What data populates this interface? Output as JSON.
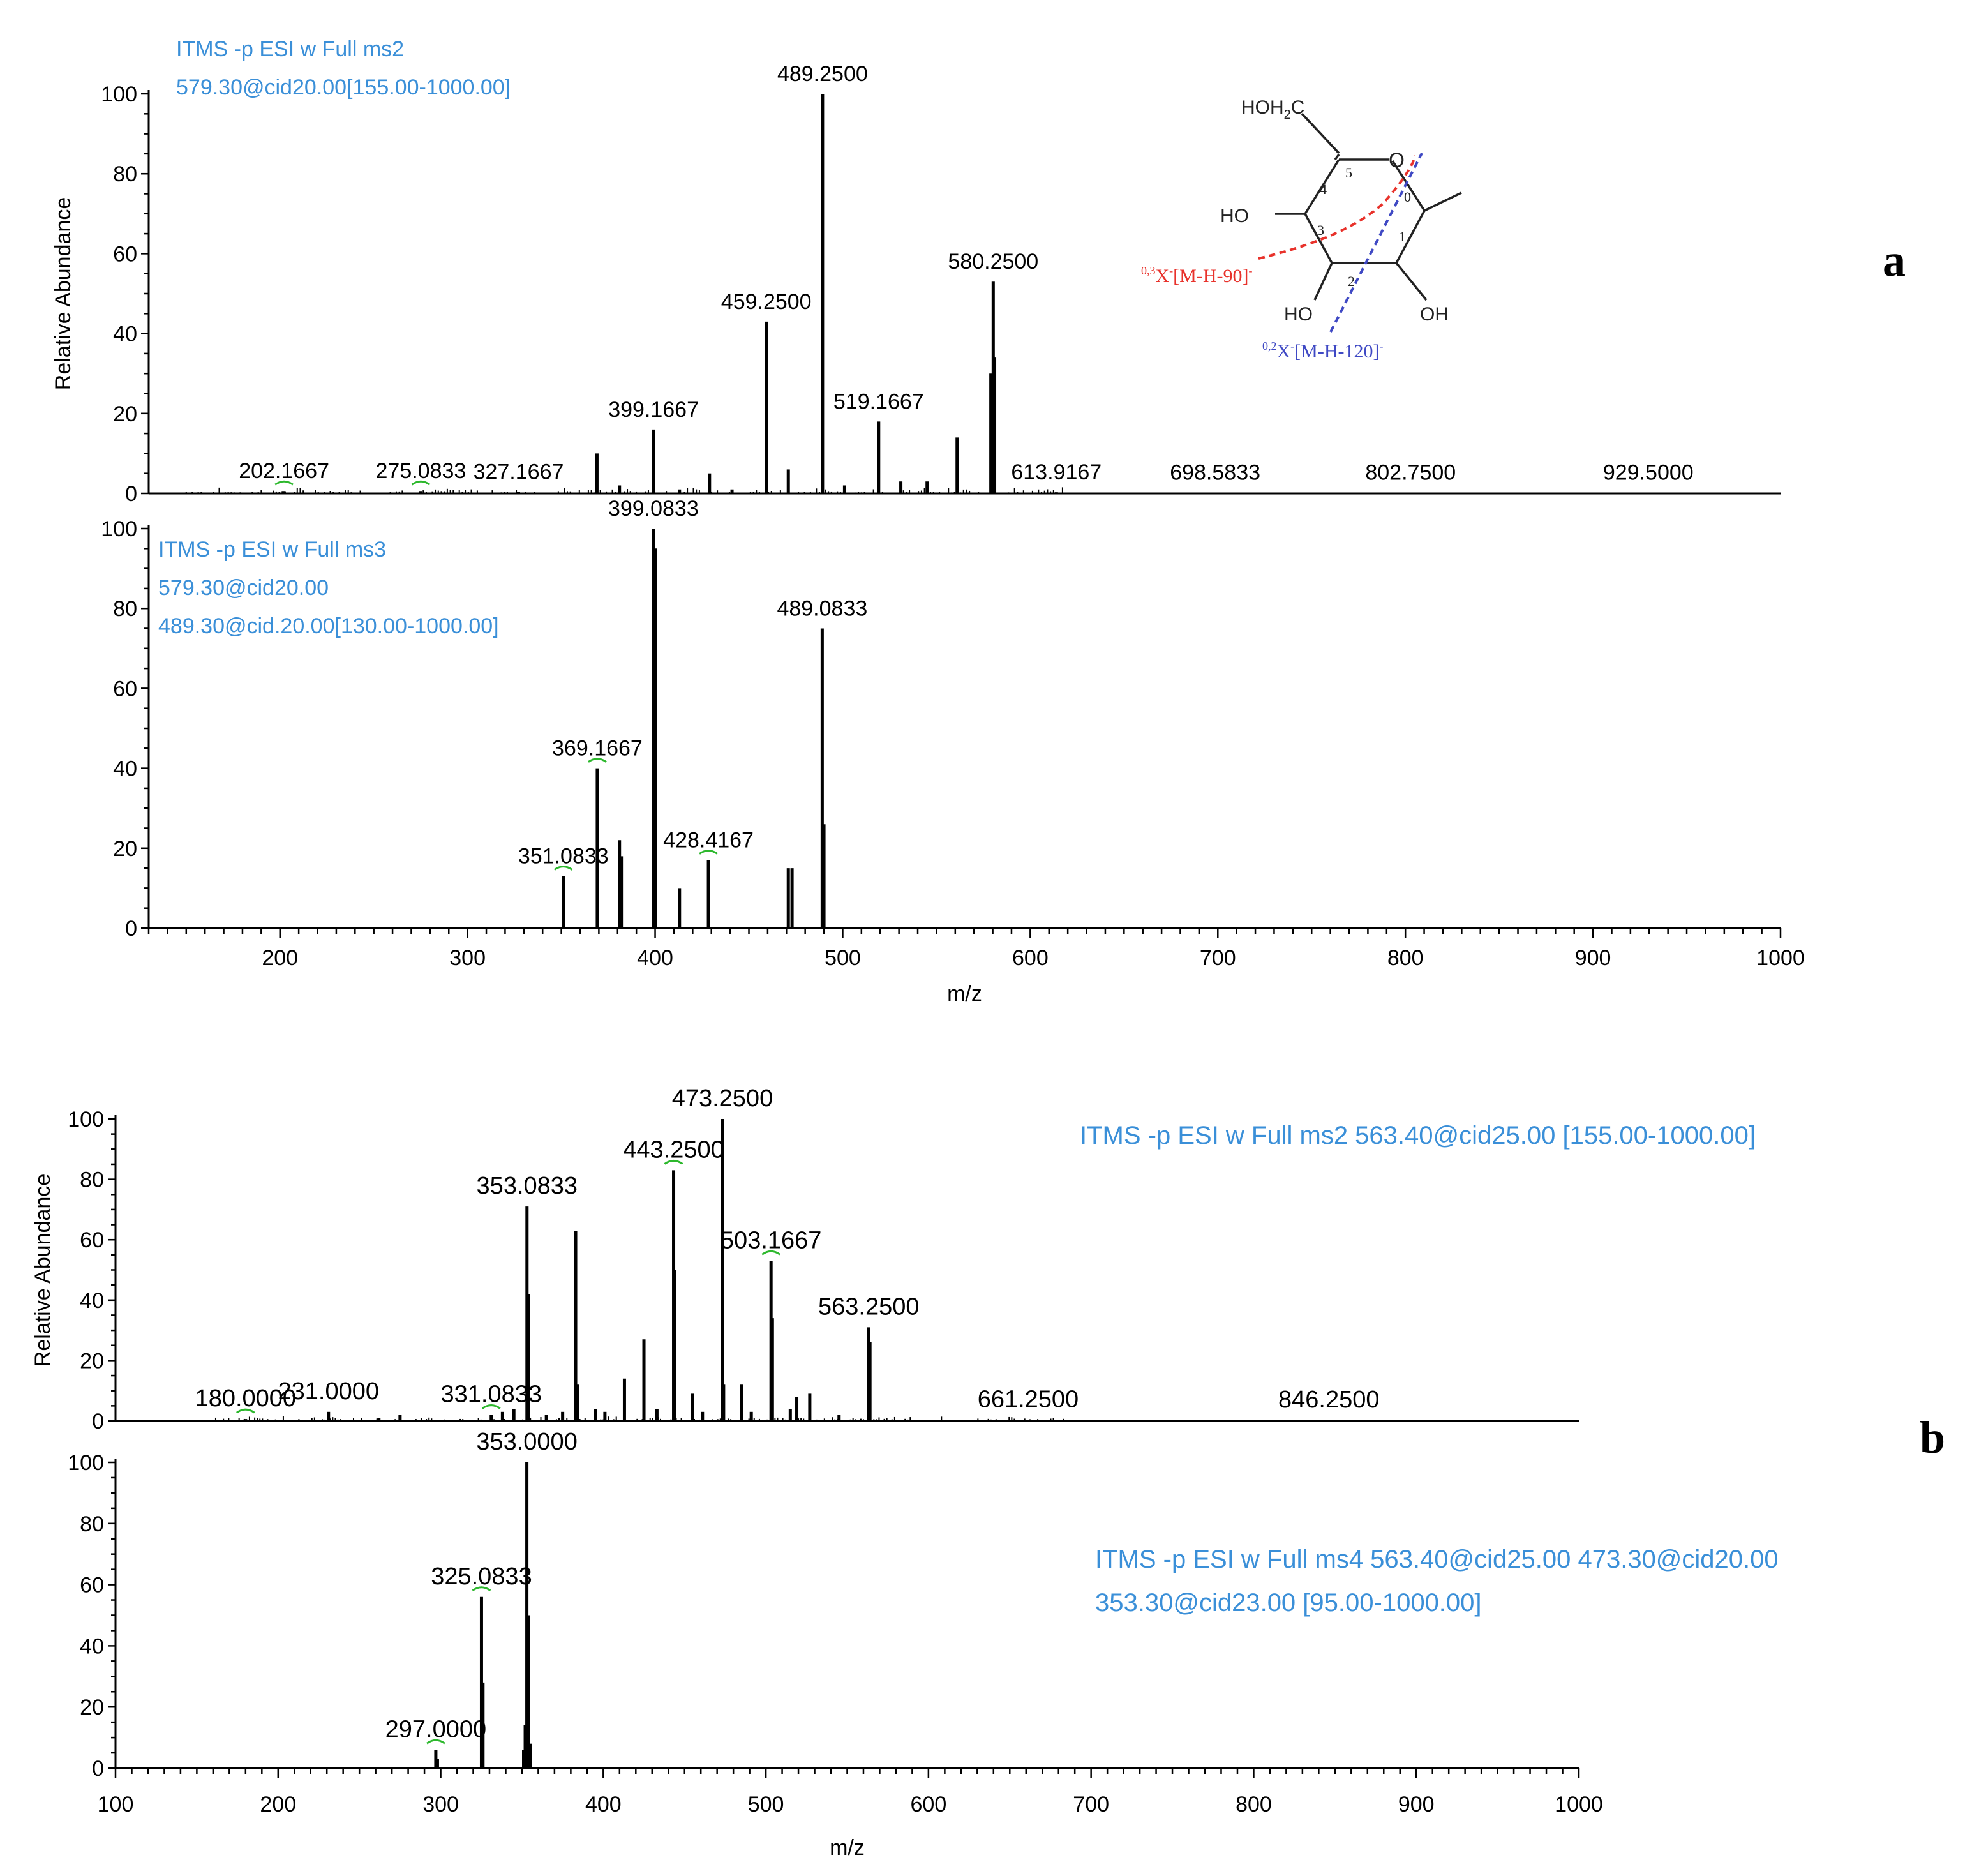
{
  "figure": {
    "panel_a_letter": "a",
    "panel_b_letter": "b",
    "colors": {
      "axis": "#000000",
      "scan_text": "#3a8fd8",
      "peak": "#000000",
      "red_cleave": "#e8322b",
      "blue_cleave": "#3f49c4",
      "marker": "#2db82d"
    }
  },
  "molecule": {
    "hoh2c": "HOH",
    "hoh2c_sub": "2",
    "hoh2c_c": "C",
    "ring_o": "O",
    "ho_left": "HO",
    "oh_bottom_left": "HO",
    "oh_bottom_right": "OH",
    "ring_numbers": [
      "5",
      "4",
      "3",
      "2",
      "1",
      "0"
    ],
    "frag_red_sup": "0,3",
    "frag_red_label": "X",
    "frag_red_sup2": "-",
    "frag_red_text": "[M-H-90]",
    "frag_red_end": "-",
    "frag_blue_sup": "0,2",
    "frag_blue_label": "X",
    "frag_blue_sup2": "-",
    "frag_blue_text": "[M-H-120]",
    "frag_blue_end": "-"
  },
  "chart_data": [
    {
      "type": "bar",
      "id": "a-top",
      "title_lines": [
        "ITMS -p ESI w Full ms2",
        "579.30@cid20.00[155.00-1000.00]"
      ],
      "ylabel": "Relative Abundance",
      "xlabel": "",
      "xlim": [
        130,
        1000
      ],
      "ylim": [
        0,
        100
      ],
      "yticks": [
        0,
        20,
        40,
        60,
        80,
        100
      ],
      "xticks": [],
      "peaks": [
        {
          "x": 202.1667,
          "y": 0.6
        },
        {
          "x": 275.0833,
          "y": 0.6
        },
        {
          "x": 327.1667,
          "y": 0.4
        },
        {
          "x": 369,
          "y": 10
        },
        {
          "x": 381,
          "y": 2
        },
        {
          "x": 399.1667,
          "y": 16
        },
        {
          "x": 413,
          "y": 1
        },
        {
          "x": 429,
          "y": 5
        },
        {
          "x": 441,
          "y": 1
        },
        {
          "x": 459.25,
          "y": 43
        },
        {
          "x": 471,
          "y": 6
        },
        {
          "x": 489.25,
          "y": 100
        },
        {
          "x": 501,
          "y": 2
        },
        {
          "x": 519.1667,
          "y": 18
        },
        {
          "x": 531,
          "y": 3
        },
        {
          "x": 545,
          "y": 3
        },
        {
          "x": 561,
          "y": 14
        },
        {
          "x": 579,
          "y": 30
        },
        {
          "x": 580.25,
          "y": 53
        },
        {
          "x": 581,
          "y": 34
        },
        {
          "x": 613.9167,
          "y": 0.3
        }
      ],
      "labels": [
        {
          "x": 202.1667,
          "y": 0.6,
          "text": "202.1667",
          "marker": true
        },
        {
          "x": 275.0833,
          "y": 0.6,
          "text": "275.0833",
          "marker": true
        },
        {
          "x": 327.1667,
          "y": 0.4,
          "text": "327.1667",
          "marker": false
        },
        {
          "x": 399.1667,
          "y": 16,
          "text": "399.1667",
          "marker": false
        },
        {
          "x": 459.25,
          "y": 43,
          "text": "459.2500",
          "marker": false
        },
        {
          "x": 489.25,
          "y": 100,
          "text": "489.2500",
          "marker": false
        },
        {
          "x": 519.1667,
          "y": 18,
          "text": "519.1667",
          "marker": false
        },
        {
          "x": 580.25,
          "y": 53,
          "text": "580.2500",
          "marker": false
        },
        {
          "x": 613.9167,
          "y": 0.3,
          "text": "613.9167",
          "marker": false
        },
        {
          "x": 698.5833,
          "y": 0.2,
          "text": "698.5833",
          "marker": false
        },
        {
          "x": 802.75,
          "y": 0.2,
          "text": "802.7500",
          "marker": false
        },
        {
          "x": 929.5,
          "y": 0.2,
          "text": "929.5000",
          "marker": false
        }
      ]
    },
    {
      "type": "bar",
      "id": "a-bottom",
      "title_lines": [
        "ITMS -p ESI w Full ms3",
        " 579.30@cid20.00",
        "489.30@cid.20.00[130.00-1000.00]"
      ],
      "ylabel": "",
      "xlabel": "m/z",
      "xlim": [
        130,
        1000
      ],
      "ylim": [
        0,
        100
      ],
      "yticks": [
        0,
        20,
        40,
        60,
        80,
        100
      ],
      "xticks": [
        200,
        300,
        400,
        500,
        600,
        700,
        800,
        900,
        1000
      ],
      "peaks": [
        {
          "x": 351.0833,
          "y": 13
        },
        {
          "x": 369.1667,
          "y": 40
        },
        {
          "x": 381,
          "y": 22
        },
        {
          "x": 382,
          "y": 18
        },
        {
          "x": 399.0833,
          "y": 100
        },
        {
          "x": 400,
          "y": 95
        },
        {
          "x": 413,
          "y": 10
        },
        {
          "x": 428.4167,
          "y": 17
        },
        {
          "x": 471,
          "y": 15
        },
        {
          "x": 473,
          "y": 15
        },
        {
          "x": 489.0833,
          "y": 75
        },
        {
          "x": 490,
          "y": 26
        }
      ],
      "labels": [
        {
          "x": 351.0833,
          "y": 13,
          "text": "351.0833",
          "marker": true
        },
        {
          "x": 369.1667,
          "y": 40,
          "text": "369.1667",
          "marker": true
        },
        {
          "x": 399.0833,
          "y": 100,
          "text": "399.0833",
          "marker": false
        },
        {
          "x": 428.4167,
          "y": 17,
          "text": "428.4167",
          "marker": true
        },
        {
          "x": 489.0833,
          "y": 75,
          "text": "489.0833",
          "marker": false
        }
      ]
    },
    {
      "type": "bar",
      "id": "b-top",
      "title_lines": [
        "ITMS -p ESI w Full ms2 563.40@cid25.00 [155.00-1000.00]"
      ],
      "ylabel": "Relative Abundance",
      "xlabel": "",
      "xlim": [
        100,
        1000
      ],
      "ylim": [
        0,
        100
      ],
      "yticks": [
        0,
        20,
        40,
        60,
        80,
        100
      ],
      "xticks": [],
      "peaks": [
        {
          "x": 180,
          "y": 0.6
        },
        {
          "x": 231,
          "y": 3
        },
        {
          "x": 262,
          "y": 1
        },
        {
          "x": 275,
          "y": 2
        },
        {
          "x": 331.0833,
          "y": 2
        },
        {
          "x": 338,
          "y": 3
        },
        {
          "x": 345,
          "y": 4
        },
        {
          "x": 353.0833,
          "y": 71
        },
        {
          "x": 354,
          "y": 42
        },
        {
          "x": 365,
          "y": 2
        },
        {
          "x": 375,
          "y": 3
        },
        {
          "x": 383,
          "y": 63
        },
        {
          "x": 384,
          "y": 12
        },
        {
          "x": 395,
          "y": 4
        },
        {
          "x": 401,
          "y": 3
        },
        {
          "x": 413,
          "y": 14
        },
        {
          "x": 425,
          "y": 27
        },
        {
          "x": 433,
          "y": 4
        },
        {
          "x": 443.25,
          "y": 83
        },
        {
          "x": 444,
          "y": 50
        },
        {
          "x": 455,
          "y": 9
        },
        {
          "x": 461,
          "y": 3
        },
        {
          "x": 473.25,
          "y": 100
        },
        {
          "x": 474,
          "y": 12
        },
        {
          "x": 485,
          "y": 12
        },
        {
          "x": 491,
          "y": 3
        },
        {
          "x": 503.1667,
          "y": 53
        },
        {
          "x": 504,
          "y": 34
        },
        {
          "x": 515,
          "y": 4
        },
        {
          "x": 519,
          "y": 8
        },
        {
          "x": 527,
          "y": 9
        },
        {
          "x": 545,
          "y": 2
        },
        {
          "x": 563.25,
          "y": 31
        },
        {
          "x": 564,
          "y": 26
        },
        {
          "x": 661.25,
          "y": 0.3
        }
      ],
      "labels": [
        {
          "x": 180,
          "y": 0.6,
          "text": "180.0000",
          "marker": true
        },
        {
          "x": 231,
          "y": 3,
          "text": "231.0000",
          "marker": false
        },
        {
          "x": 331.0833,
          "y": 2,
          "text": "331.0833",
          "marker": true
        },
        {
          "x": 353.0833,
          "y": 71,
          "text": "353.0833",
          "marker": false
        },
        {
          "x": 443.25,
          "y": 83,
          "text": "443.2500",
          "marker": true
        },
        {
          "x": 473.25,
          "y": 100,
          "text": "473.2500",
          "marker": false
        },
        {
          "x": 503.1667,
          "y": 53,
          "text": "503.1667",
          "marker": true
        },
        {
          "x": 563.25,
          "y": 31,
          "text": "563.2500",
          "marker": false
        },
        {
          "x": 661.25,
          "y": 0.3,
          "text": "661.2500",
          "marker": false
        },
        {
          "x": 846.25,
          "y": 0.2,
          "text": "846.2500",
          "marker": false
        }
      ]
    },
    {
      "type": "bar",
      "id": "b-bottom",
      "title_lines": [
        "ITMS -p ESI w Full ms4 563.40@cid25.00  473.30@cid20.00",
        "353.30@cid23.00 [95.00-1000.00]"
      ],
      "ylabel": "",
      "xlabel": "m/z",
      "xlim": [
        100,
        1000
      ],
      "ylim": [
        0,
        100
      ],
      "yticks": [
        0,
        20,
        40,
        60,
        80,
        100
      ],
      "xticks": [
        100,
        200,
        300,
        400,
        500,
        600,
        700,
        800,
        900,
        1000
      ],
      "peaks": [
        {
          "x": 297,
          "y": 6
        },
        {
          "x": 298,
          "y": 3
        },
        {
          "x": 325.0833,
          "y": 56
        },
        {
          "x": 326,
          "y": 28
        },
        {
          "x": 351,
          "y": 6
        },
        {
          "x": 352,
          "y": 14
        },
        {
          "x": 353,
          "y": 100
        },
        {
          "x": 354,
          "y": 50
        },
        {
          "x": 355,
          "y": 8
        }
      ],
      "labels": [
        {
          "x": 297,
          "y": 6,
          "text": "297.0000",
          "marker": true
        },
        {
          "x": 325.0833,
          "y": 56,
          "text": "325.0833",
          "marker": true
        },
        {
          "x": 353,
          "y": 100,
          "text": "353.0000",
          "marker": false
        }
      ]
    }
  ]
}
